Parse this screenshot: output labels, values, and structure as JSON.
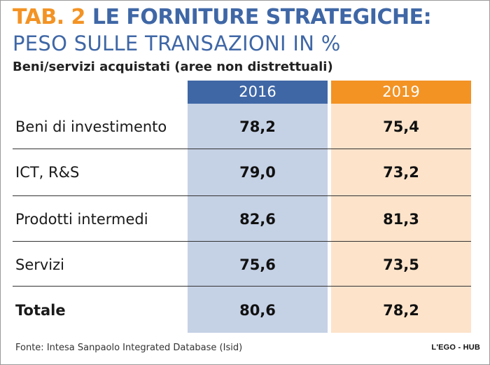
{
  "title": {
    "prefix": "TAB. 2",
    "main": " LE FORNITURE STRATEGICHE:"
  },
  "subtitle": "PESO SULLE TRANSAZIONI IN %",
  "caption": "Beni/servizi acquistati (aree non distrettuali)",
  "colors": {
    "blue": "#3f67a6",
    "orange": "#f39324",
    "blue_light": "#c5d1e5",
    "orange_light": "#fce3ca"
  },
  "chart_data": {
    "type": "table",
    "title": "TAB. 2 LE FORNITURE STRATEGICHE:",
    "subtitle": "PESO SULLE TRANSAZIONI IN %",
    "caption": "Beni/servizi acquistati (aree non distrettuali)",
    "columns": [
      "2016",
      "2019"
    ],
    "rows": [
      {
        "label": "Beni di investimento",
        "values": [
          "78,2",
          "75,4"
        ]
      },
      {
        "label": "ICT, R&S",
        "values": [
          "79,0",
          "73,2"
        ]
      },
      {
        "label": "Prodotti intermedi",
        "values": [
          "82,6",
          "81,3"
        ]
      },
      {
        "label": "Servizi",
        "values": [
          "75,6",
          "73,5"
        ]
      },
      {
        "label": "Totale",
        "values": [
          "80,6",
          "78,2"
        ]
      }
    ]
  },
  "footer": {
    "source": "Fonte: Intesa Sanpaolo Integrated Database (Isid)",
    "logo": "L'EGO - HUB"
  }
}
